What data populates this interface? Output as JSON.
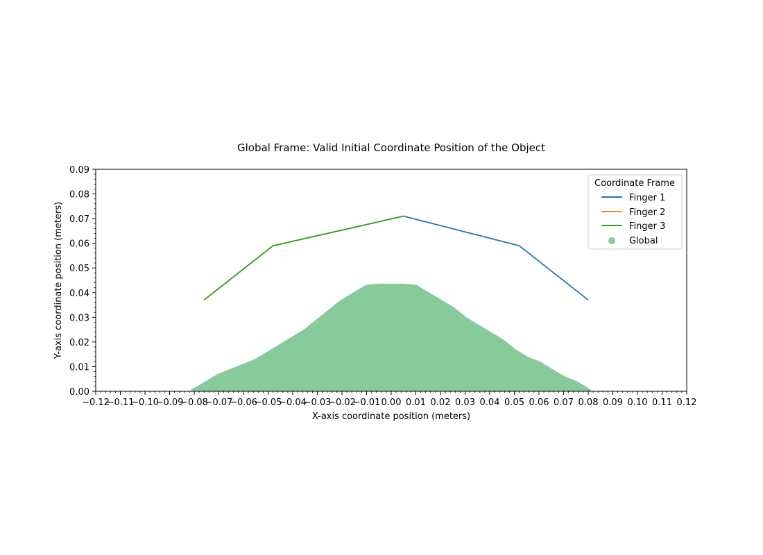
{
  "chart_data": {
    "type": "line",
    "title": "Global Frame: Valid Initial Coordinate Position of the Object",
    "xlabel": "X-axis coordinate position (meters)",
    "ylabel": "Y-axis coordinate position (meters)",
    "xlim": [
      -0.12,
      0.12
    ],
    "ylim": [
      0.0,
      0.09
    ],
    "x_ticks": [
      "−0.12",
      "−0.11",
      "−0.10",
      "−0.09",
      "−0.08",
      "−0.07",
      "−0.06",
      "−0.05",
      "−0.04",
      "−0.03",
      "−0.02",
      "−0.01",
      "0.00",
      "0.01",
      "0.02",
      "0.03",
      "0.04",
      "0.05",
      "0.06",
      "0.07",
      "0.08",
      "0.09",
      "0.10",
      "0.11",
      "0.12"
    ],
    "y_ticks": [
      "0.00",
      "0.01",
      "0.02",
      "0.03",
      "0.04",
      "0.05",
      "0.06",
      "0.07",
      "0.08",
      "0.09"
    ],
    "grid": false,
    "legend": {
      "title": "Coordinate Frame",
      "placement": "top-right"
    },
    "series": [
      {
        "name": "Finger 1",
        "kind": "line",
        "color": "#1f77b4",
        "x": [
          0.005,
          0.052,
          0.08
        ],
        "y": [
          0.071,
          0.059,
          0.037
        ]
      },
      {
        "name": "Finger 2",
        "kind": "line",
        "color": "#ff7f0e",
        "x": [
          0.005,
          -0.048,
          -0.076
        ],
        "y": [
          0.071,
          0.059,
          0.037
        ]
      },
      {
        "name": "Finger 3",
        "kind": "line",
        "color": "#2ca02c",
        "x": [
          0.005,
          -0.048,
          -0.076
        ],
        "y": [
          0.071,
          0.059,
          0.037
        ]
      },
      {
        "name": "Global",
        "kind": "scatter",
        "color": "#88cb9a",
        "envelope": {
          "x": [
            -0.08,
            -0.075,
            -0.07,
            -0.065,
            -0.06,
            -0.055,
            -0.05,
            -0.045,
            -0.04,
            -0.035,
            -0.03,
            -0.025,
            -0.02,
            -0.015,
            -0.01,
            -0.005,
            0.0,
            0.005,
            0.01,
            0.015,
            0.02,
            0.025,
            0.03,
            0.035,
            0.04,
            0.045,
            0.05,
            0.055,
            0.06,
            0.065,
            0.07,
            0.075,
            0.08
          ],
          "y": [
            0.0,
            0.003,
            0.006,
            0.008,
            0.01,
            0.012,
            0.015,
            0.018,
            0.021,
            0.024,
            0.028,
            0.032,
            0.036,
            0.039,
            0.042,
            0.0425,
            0.0425,
            0.0425,
            0.042,
            0.039,
            0.036,
            0.033,
            0.029,
            0.026,
            0.023,
            0.02,
            0.016,
            0.013,
            0.011,
            0.008,
            0.005,
            0.003,
            0.0
          ]
        }
      }
    ]
  }
}
